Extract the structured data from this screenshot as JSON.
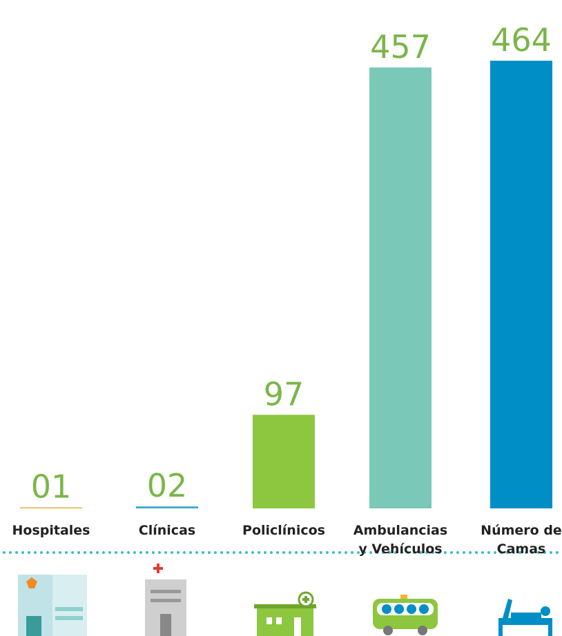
{
  "chart_data": {
    "type": "bar",
    "categories": [
      "Hospitales",
      "Clínicas",
      "Policlínicos",
      "Ambulancias y Vehículos",
      "Número de Camas"
    ],
    "values": [
      1,
      2,
      97,
      457,
      464
    ],
    "value_labels": [
      "01",
      "02",
      "97",
      "457",
      "464"
    ],
    "colors": [
      "#e8a93b",
      "#3ba9c9",
      "#8dc63f",
      "#79c8b8",
      "#008ec6"
    ],
    "label_color": "#7ab648"
  }
}
